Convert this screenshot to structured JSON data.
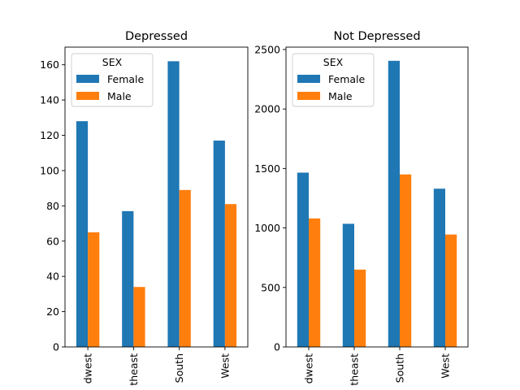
{
  "chart_data": [
    {
      "type": "bar",
      "title": "Depressed",
      "categories": [
        "Midwest",
        "Northeast",
        "South",
        "West"
      ],
      "tick_labels_visible": [
        "dwest",
        "theast",
        "South",
        "West"
      ],
      "yticks": [
        0,
        20,
        40,
        60,
        80,
        100,
        120,
        140,
        160
      ],
      "ylim": [
        0,
        170
      ],
      "grid": false,
      "legend": {
        "title": "SEX",
        "placement": "top-left"
      },
      "series": [
        {
          "name": "Female",
          "color": "#1f77b4",
          "values": [
            128,
            77,
            162,
            117
          ]
        },
        {
          "name": "Male",
          "color": "#ff7f0e",
          "values": [
            65,
            34,
            89,
            81
          ]
        }
      ]
    },
    {
      "type": "bar",
      "title": "Not Depressed",
      "categories": [
        "Midwest",
        "Northeast",
        "South",
        "West"
      ],
      "tick_labels_visible": [
        "dwest",
        "theast",
        "South",
        "West"
      ],
      "yticks": [
        0,
        500,
        1000,
        1500,
        2000,
        2500
      ],
      "ylim": [
        0,
        2520
      ],
      "grid": false,
      "legend": {
        "title": "SEX",
        "placement": "top-left"
      },
      "series": [
        {
          "name": "Female",
          "color": "#1f77b4",
          "values": [
            1465,
            1035,
            2405,
            1330
          ]
        },
        {
          "name": "Male",
          "color": "#ff7f0e",
          "values": [
            1080,
            650,
            1450,
            945
          ]
        }
      ]
    }
  ]
}
